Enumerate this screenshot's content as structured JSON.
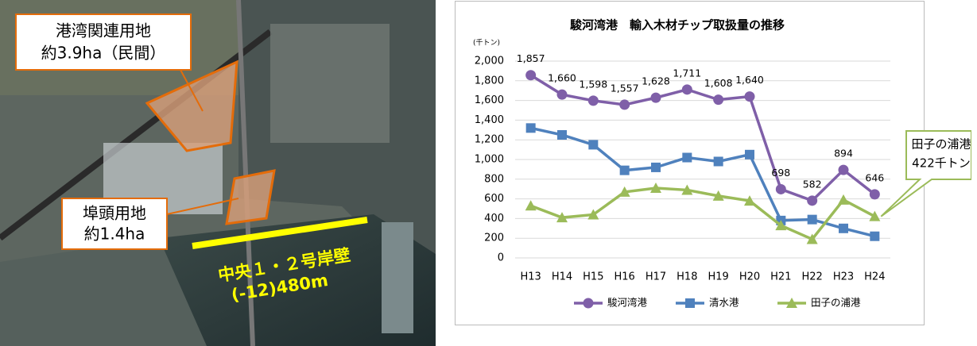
{
  "photo": {
    "labels": [
      {
        "lines": [
          "港湾関連用地",
          "約3.9ha（民間）"
        ]
      },
      {
        "lines": [
          "埠頭用地",
          "約1.4ha"
        ]
      },
      {
        "lines": [
          "中央１・２号岸壁",
          "(-12)480m"
        ]
      }
    ]
  },
  "chart_data": {
    "type": "line",
    "title": "駿河湾港　輸入木材チップ取扱量の推移",
    "y_unit": "(千トン)",
    "categories": [
      "H13",
      "H14",
      "H15",
      "H16",
      "H17",
      "H18",
      "H19",
      "H20",
      "H21",
      "H22",
      "H23",
      "H24"
    ],
    "ylim": [
      0,
      2000
    ],
    "yticks": [
      0,
      200,
      400,
      600,
      800,
      {
        "value": 1000,
        "label": "1,000"
      },
      {
        "value": 1200,
        "label": "1,200"
      },
      {
        "value": 1400,
        "label": "1,400"
      },
      {
        "value": 1600,
        "label": "1,600"
      },
      {
        "value": 1800,
        "label": "1,800"
      },
      {
        "value": 2000,
        "label": "2,000"
      }
    ],
    "grid": true,
    "series": [
      {
        "name": "駿河湾港",
        "color": "#7f5fa8",
        "marker": "circle",
        "values": [
          1857,
          1660,
          1598,
          1557,
          1628,
          1711,
          1608,
          1640,
          698,
          582,
          894,
          646
        ],
        "value_labels": [
          "1,857",
          "1,660",
          "1,598",
          "1,557",
          "1,628",
          "1,711",
          "1,608",
          "1,640",
          "698",
          "582",
          "894",
          "646"
        ]
      },
      {
        "name": "清水港",
        "color": "#4f81bd",
        "marker": "square",
        "values": [
          1320,
          1250,
          1150,
          890,
          920,
          1020,
          980,
          1050,
          380,
          390,
          300,
          220
        ]
      },
      {
        "name": "田子の浦港",
        "color": "#9bbb59",
        "marker": "triangle",
        "values": [
          530,
          410,
          440,
          670,
          710,
          690,
          630,
          580,
          330,
          190,
          590,
          422
        ]
      }
    ],
    "annotations": [
      {
        "lines": [
          "田子の浦港",
          "422千トン"
        ]
      }
    ]
  }
}
